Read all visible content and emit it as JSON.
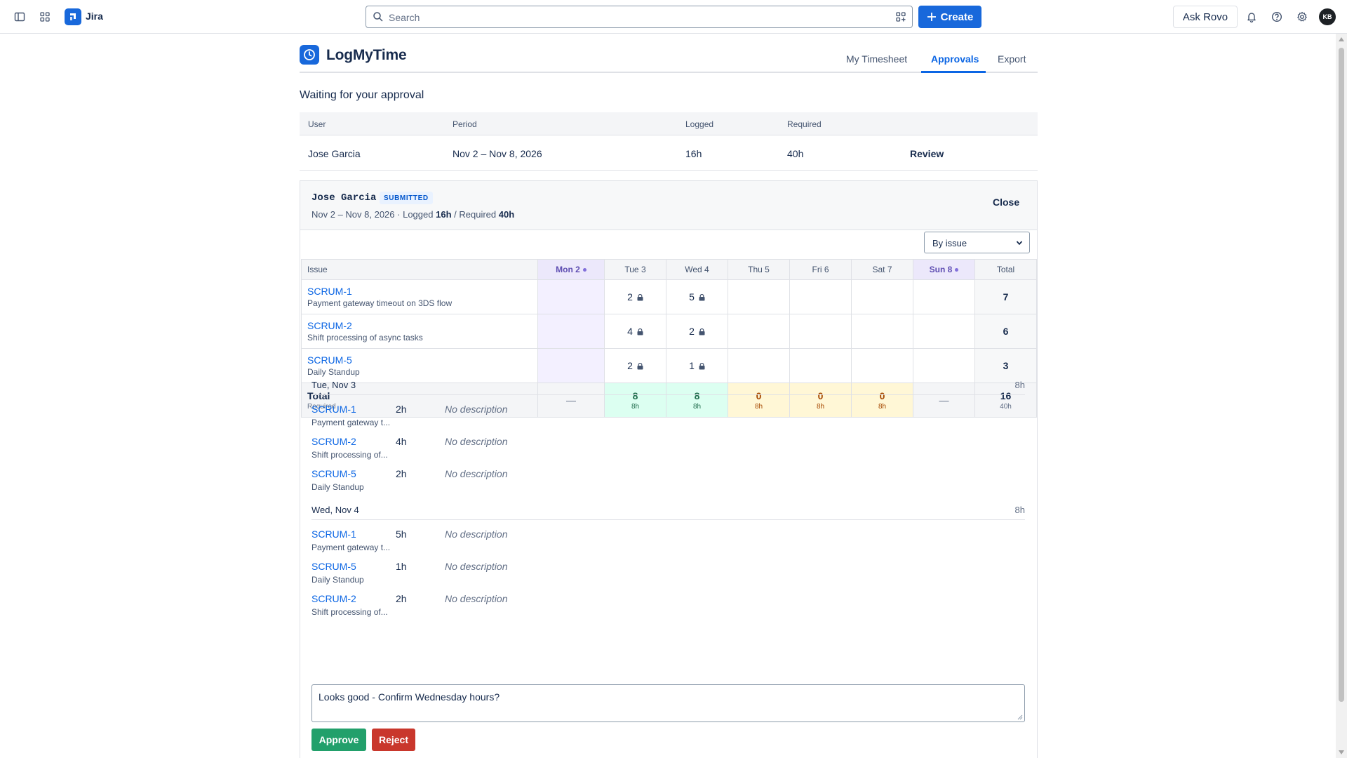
{
  "topnav": {
    "app_name": "Jira",
    "search_placeholder": "Search",
    "create_label": "Create",
    "ask_rovo_label": "Ask Rovo",
    "avatar_initials": "KB"
  },
  "app": {
    "title": "LogMyTime",
    "tabs": [
      {
        "label": "My Timesheet",
        "active": false
      },
      {
        "label": "Approvals",
        "active": true
      },
      {
        "label": "Export",
        "active": false
      }
    ]
  },
  "waiting": {
    "title": "Waiting for your approval",
    "columns": [
      "User",
      "Period",
      "Logged",
      "Required"
    ],
    "rows": [
      {
        "user": "Jose Garcia",
        "period": "Nov 2 – Nov 8, 2026",
        "logged": "16h",
        "required": "40h",
        "action": "Review"
      }
    ]
  },
  "review": {
    "user": "Jose Garcia",
    "status": "SUBMITTED",
    "period": "Nov 2 – Nov 8, 2026",
    "logged_label": "Logged",
    "logged": "16h",
    "required_label": "Required",
    "required": "40h",
    "close_label": "Close",
    "view_select": "By issue",
    "grid": {
      "issue_header": "Issue",
      "days": [
        "Mon 2",
        "Tue 3",
        "Wed 4",
        "Thu 5",
        "Fri 6",
        "Sat 7",
        "Sun 8"
      ],
      "total_header": "Total",
      "rows": [
        {
          "key": "SCRUM-1",
          "summary": "Payment gateway timeout on 3DS flow",
          "cells": [
            "",
            "2",
            "5",
            "",
            "",
            "",
            ""
          ],
          "total": "7"
        },
        {
          "key": "SCRUM-2",
          "summary": "Shift processing of async tasks",
          "cells": [
            "",
            "4",
            "2",
            "",
            "",
            "",
            ""
          ],
          "total": "6"
        },
        {
          "key": "SCRUM-5",
          "summary": "Daily Standup",
          "cells": [
            "",
            "2",
            "1",
            "",
            "",
            "",
            ""
          ],
          "total": "3"
        }
      ],
      "total_row": {
        "label": "Total",
        "sublabel": "Required",
        "values": [
          "—",
          "8",
          "8",
          "0",
          "0",
          "0",
          "—"
        ],
        "required": [
          "",
          "8h",
          "8h",
          "8h",
          "8h",
          "8h",
          ""
        ],
        "total": "16",
        "total_required": "40h"
      }
    },
    "days": [
      {
        "label": "Tue, Nov 3",
        "hours": "8h",
        "entries": [
          {
            "key": "SCRUM-1",
            "summary": "Payment gateway t...",
            "hours": "2h",
            "desc": "No description"
          },
          {
            "key": "SCRUM-2",
            "summary": "Shift processing of...",
            "hours": "4h",
            "desc": "No description"
          },
          {
            "key": "SCRUM-5",
            "summary": "Daily Standup",
            "hours": "2h",
            "desc": "No description"
          }
        ]
      },
      {
        "label": "Wed, Nov 4",
        "hours": "8h",
        "entries": [
          {
            "key": "SCRUM-1",
            "summary": "Payment gateway t...",
            "hours": "5h",
            "desc": "No description"
          },
          {
            "key": "SCRUM-5",
            "summary": "Daily Standup",
            "hours": "1h",
            "desc": "No description"
          },
          {
            "key": "SCRUM-2",
            "summary": "Shift processing of...",
            "hours": "2h",
            "desc": "No description"
          }
        ]
      }
    ],
    "comment": "Looks good - Confirm Wednesday hours?",
    "approve_label": "Approve",
    "reject_label": "Reject"
  }
}
